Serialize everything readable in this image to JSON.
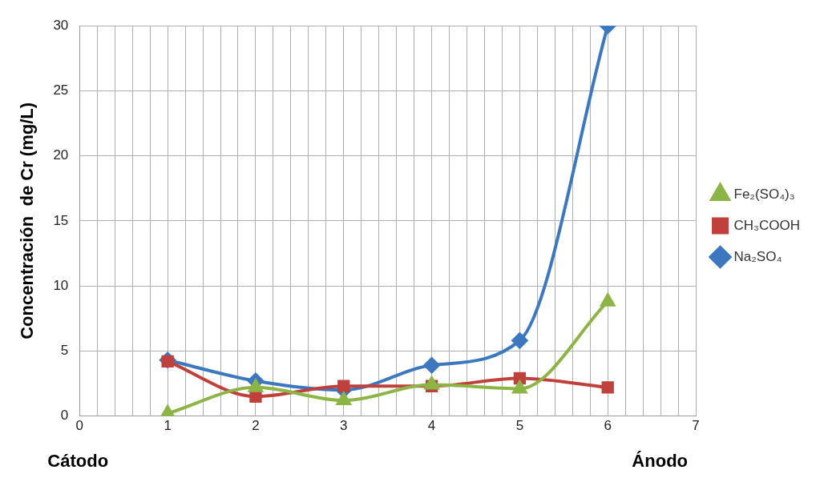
{
  "chart_data": {
    "type": "line",
    "ylabel": "Concentración  de Cr (mg/L)",
    "annotations": [
      "Cátodo",
      "Ánodo"
    ],
    "x": [
      1,
      2,
      3,
      4,
      5,
      6
    ],
    "series": [
      {
        "name": "Na₂SO₄",
        "color": "#3c78bf",
        "marker": "diamond",
        "values": [
          4.3,
          2.7,
          2.0,
          3.9,
          5.8,
          30
        ]
      },
      {
        "name": "CH₃COOH",
        "color": "#c0403c",
        "marker": "square",
        "values": [
          4.2,
          1.5,
          2.3,
          2.3,
          2.9,
          2.2
        ]
      },
      {
        "name": "Fe₂(SO₄)₃",
        "color": "#8db545",
        "marker": "triangle",
        "values": [
          0.2,
          2.2,
          1.2,
          2.4,
          2.1,
          8.8
        ]
      }
    ],
    "xlim": [
      0,
      7
    ],
    "xticks": [
      0,
      {
        "value": 0.2,
        "label": null
      },
      {
        "value": 0.4,
        "label": null
      },
      {
        "value": 0.6,
        "label": null
      },
      {
        "value": 0.8,
        "label": null
      },
      1,
      {
        "value": 1.2,
        "label": null
      },
      {
        "value": 1.4,
        "label": null
      },
      {
        "value": 1.6,
        "label": null
      },
      {
        "value": 1.8,
        "label": null
      },
      2,
      {
        "value": 2.2,
        "label": null
      },
      {
        "value": 2.4,
        "label": null
      },
      {
        "value": 2.6,
        "label": null
      },
      {
        "value": 2.8,
        "label": null
      },
      3,
      {
        "value": 3.2,
        "label": null
      },
      {
        "value": 3.4,
        "label": null
      },
      {
        "value": 3.6,
        "label": null
      },
      {
        "value": 3.8,
        "label": null
      },
      4,
      {
        "value": 4.2,
        "label": null
      },
      {
        "value": 4.4,
        "label": null
      },
      {
        "value": 4.6,
        "label": null
      },
      {
        "value": 4.8,
        "label": null
      },
      5,
      {
        "value": 5.2,
        "label": null
      },
      {
        "value": 5.4,
        "label": null
      },
      {
        "value": 5.6,
        "label": null
      },
      {
        "value": 5.8,
        "label": null
      },
      6,
      {
        "value": 6.2,
        "label": null
      },
      {
        "value": 6.4,
        "label": null
      },
      {
        "value": 6.6,
        "label": null
      },
      {
        "value": 6.8,
        "label": null
      },
      7
    ],
    "ylim": [
      0,
      30
    ],
    "yticks": [
      0,
      5,
      10,
      15,
      20,
      25,
      30
    ],
    "grid": true,
    "legend": "right"
  }
}
